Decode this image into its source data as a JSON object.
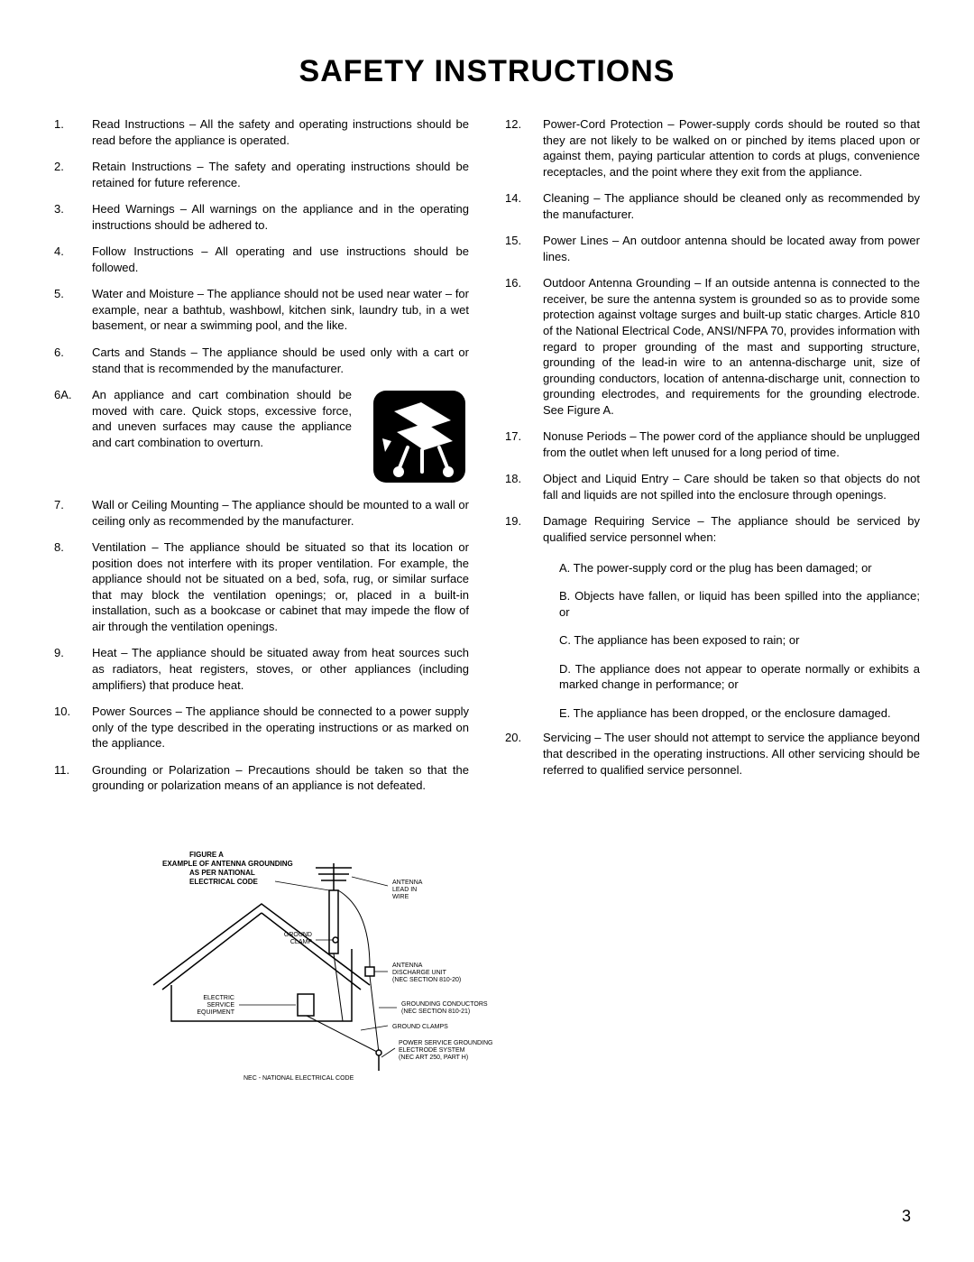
{
  "title": "SAFETY INSTRUCTIONS",
  "page_number": "3",
  "left": [
    {
      "n": "1.",
      "t": "Read Instructions – All the safety and operating instructions should be read before the appliance is operated."
    },
    {
      "n": "2.",
      "t": "Retain Instructions – The safety and operating instructions should be retained for future reference."
    },
    {
      "n": "3.",
      "t": "Heed Warnings – All warnings on the appliance and in the operating instructions should be adhered to."
    },
    {
      "n": "4.",
      "t": "Follow Instructions – All operating and use instructions should be followed."
    },
    {
      "n": "5.",
      "t": "Water and Moisture – The appliance should not be used near water – for example, near a bathtub, washbowl, kitchen sink, laundry tub, in a wet basement, or near a swimming pool, and the like."
    },
    {
      "n": "6.",
      "t": "Carts and Stands – The appliance should be used only with a cart or stand that is recommended by the manufacturer."
    },
    {
      "n": "6A.",
      "t": "An appliance and cart combination should be moved with care. Quick stops, excessive force, and uneven surfaces may cause the appliance and cart combination to overturn.",
      "cart": true
    },
    {
      "n": "7.",
      "t": "Wall or Ceiling Mounting – The appliance should be mounted to a wall or ceiling only as recommended by the manufacturer."
    },
    {
      "n": "8.",
      "t": "Ventilation – The appliance should be situated so that its location or position does not interfere with its proper ventilation. For example, the appliance should not be situated on a bed, sofa, rug, or similar surface that may block the ventilation openings; or, placed in a built-in installation, such as a bookcase or cabinet that may impede the flow of air through the ventilation openings."
    },
    {
      "n": "9.",
      "t": "Heat – The appliance should be situated away from heat sources such as radiators, heat registers, stoves, or other appliances (including amplifiers) that produce heat."
    },
    {
      "n": "10.",
      "t": "Power Sources – The appliance should be connected to a power supply only of the type described in the operating instructions or as marked on the appliance."
    },
    {
      "n": "11.",
      "t": "Grounding or Polarization – Precautions should be taken so that the grounding or polarization means of an appliance is not defeated."
    }
  ],
  "right": [
    {
      "n": "12.",
      "t": "Power-Cord Protection – Power-supply cords should be routed so that they are not likely to be walked on or pinched by items placed upon or against them, paying particular attention to cords at plugs, convenience receptacles, and the point where they exit from the appliance."
    },
    {
      "n": "14.",
      "t": "Cleaning – The appliance should be cleaned only as recommended by the manufacturer."
    },
    {
      "n": "15.",
      "t": "Power Lines – An outdoor antenna should be located away from power lines."
    },
    {
      "n": "16.",
      "t": "Outdoor Antenna Grounding – If an outside antenna is connected to the receiver, be sure the antenna system is grounded so as to provide some protection against voltage surges and built-up static charges. Article 810 of the National Electrical Code, ANSI/NFPA 70, provides information with regard to proper grounding of the mast and supporting structure, grounding of the lead-in wire to an antenna-discharge unit, size of grounding conductors, location of antenna-discharge unit, connection to grounding electrodes, and requirements for the grounding electrode. See Figure A."
    },
    {
      "n": "17.",
      "t": "Nonuse Periods – The power cord of the appliance should be unplugged from the outlet when left unused for a long period of time."
    },
    {
      "n": "18.",
      "t": "Object and Liquid Entry – Care should be taken so that objects do not fall and liquids are not spilled into the enclosure through openings."
    },
    {
      "n": "19.",
      "t": "Damage Requiring Service – The appliance should be serviced by qualified service personnel when:",
      "subs": [
        "A. The power-supply cord or the plug has been damaged; or",
        "B. Objects have fallen, or liquid has been spilled into the appliance; or",
        "C. The appliance has been exposed to rain; or",
        "D. The appliance does not appear to operate normally or exhibits a marked change in performance; or",
        "E. The appliance has been dropped, or the enclosure damaged."
      ]
    },
    {
      "n": "20.",
      "t": "Servicing – The user should not attempt to service the appliance beyond that described in the operating instructions. All other servicing should be referred to qualified service personnel."
    }
  ],
  "figure": {
    "title_lines": [
      "FIGURE A",
      "EXAMPLE OF ANTENNA GROUNDING",
      "AS PER NATIONAL",
      "ELECTRICAL CODE"
    ],
    "antenna_lead": "ANTENNA\nLEAD IN\nWIRE",
    "ground_clamp": "GROUND\nCLAMP",
    "discharge": "ANTENNA\nDISCHARGE UNIT\n(NEC SECTION 810-20)",
    "electric_service": "ELECTRIC\nSERVICE\nEQUIPMENT",
    "grounding_cond": "GROUNDING CONDUCTORS\n(NEC SECTION 810-21)",
    "ground_clamps": "GROUND CLAMPS",
    "power_service": "POWER SERVICE GROUNDING\nELECTRODE SYSTEM\n(NEC ART 250, PART H)",
    "nec_note": "NEC - NATIONAL ELECTRICAL CODE"
  }
}
